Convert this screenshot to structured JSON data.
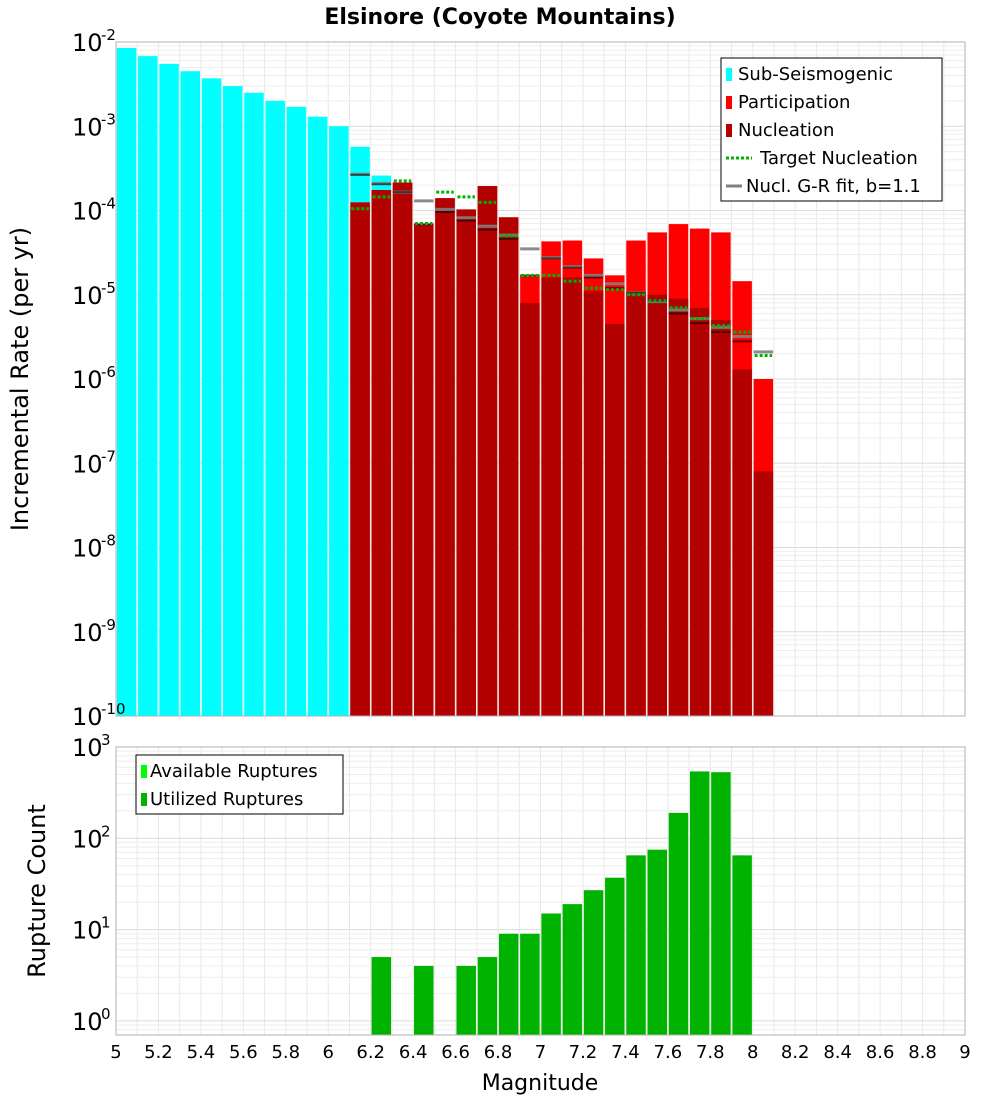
{
  "chart_data": [
    {
      "type": "bar",
      "title": "Elsinore (Coyote Mountains)",
      "xlabel": "Magnitude",
      "ylabel": "Incremental Rate (per yr)",
      "yscale": "log",
      "ylim": [
        1e-10,
        0.01
      ],
      "xlim": [
        5,
        9
      ],
      "y_ticks": [
        {
          "b": "10",
          "e": "-2"
        },
        {
          "b": "10",
          "e": "-3"
        },
        {
          "b": "10",
          "e": "-4"
        },
        {
          "b": "10",
          "e": "-5"
        },
        {
          "b": "10",
          "e": "-6"
        },
        {
          "b": "10",
          "e": "-7"
        },
        {
          "b": "10",
          "e": "-8"
        },
        {
          "b": "10",
          "e": "-9"
        },
        {
          "b": "10",
          "e": "-10"
        }
      ],
      "legend": [
        {
          "label": "Sub-Seismogenic",
          "color": "#00ffff",
          "style": "bar"
        },
        {
          "label": "Participation",
          "color": "#ff0000",
          "style": "bar"
        },
        {
          "label": "Nucleation",
          "color": "#b30000",
          "style": "bar"
        },
        {
          "label": "Target Nucleation",
          "color": "#00b300",
          "style": "dotted"
        },
        {
          "label": "Nucl. G-R fit, b=1.1",
          "color": "#808080",
          "style": "line"
        }
      ],
      "sub_seismogenic": {
        "x": [
          5.05,
          5.15,
          5.25,
          5.35,
          5.45,
          5.55,
          5.65,
          5.75,
          5.85,
          5.95,
          6.05,
          6.15,
          6.25
        ],
        "values": [
          0.0085,
          0.0068,
          0.0055,
          0.0045,
          0.0037,
          0.003,
          0.0025,
          0.002,
          0.0017,
          0.0013,
          0.001,
          0.00057,
          0.00026
        ]
      },
      "participation": {
        "x": [
          6.15,
          6.25,
          6.35,
          6.45,
          6.55,
          6.65,
          6.75,
          6.85,
          6.95,
          7.05,
          7.15,
          7.25,
          7.35,
          7.45,
          7.55,
          7.65,
          7.75,
          7.85,
          7.95,
          8.05
        ],
        "values": [
          0.000105,
          0.000175,
          0.000215,
          6.9e-05,
          0.00014,
          0.000103,
          0.000195,
          8.3e-05,
          1.7e-05,
          4.3e-05,
          4.4e-05,
          2.7e-05,
          1.7e-05,
          4.4e-05,
          5.5e-05,
          6.9e-05,
          6.1e-05,
          5.5e-05,
          1.45e-05,
          1e-06
        ]
      },
      "nucleation": {
        "x": [
          6.15,
          6.25,
          6.35,
          6.45,
          6.55,
          6.65,
          6.75,
          6.85,
          6.95,
          7.05,
          7.15,
          7.25,
          7.35,
          7.45,
          7.55,
          7.65,
          7.75,
          7.85,
          7.95,
          8.05
        ],
        "values": [
          0.000125,
          0.000175,
          0.000215,
          6.9e-05,
          0.00014,
          0.000103,
          0.000195,
          8.3e-05,
          8e-06,
          1.6e-05,
          1.6e-05,
          1.1e-05,
          4.5e-06,
          1.1e-05,
          1e-05,
          9e-06,
          7e-06,
          5e-06,
          1.3e-06,
          8e-08
        ]
      },
      "nucleation_marks": {
        "x": [
          6.15,
          6.25,
          6.35,
          6.45,
          6.55,
          6.65,
          6.75,
          6.85,
          6.95,
          7.05,
          7.15,
          7.25,
          7.35,
          7.45,
          7.55,
          7.65,
          7.75,
          7.85,
          7.95
        ],
        "values": [
          0.000265,
          0.000205,
          0.000165,
          6.9e-05,
          9.6e-05,
          7.6e-05,
          5.9e-05,
          4.6e-05,
          1.7e-05,
          2.7e-05,
          2.1e-05,
          1.6e-05,
          1.2e-05,
          1.05e-05,
          8.5e-06,
          6e-06,
          4.6e-06,
          3.6e-06,
          2.8e-06
        ]
      },
      "target_nucleation": {
        "x": [
          6.15,
          6.25,
          6.35,
          6.45,
          6.55,
          6.65,
          6.75,
          6.85,
          6.95,
          7.05,
          7.15,
          7.25,
          7.35,
          7.45,
          7.55,
          7.65,
          7.75,
          7.85,
          7.95,
          8.05
        ],
        "values": [
          0.000105,
          0.000145,
          0.000225,
          7e-05,
          0.000165,
          0.000145,
          0.000125,
          5e-05,
          1.7e-05,
          1.7e-05,
          1.45e-05,
          1.2e-05,
          1.15e-05,
          1e-05,
          8.5e-06,
          7e-06,
          5.2e-06,
          4.3e-06,
          3.6e-06,
          1.9e-06
        ]
      },
      "gr_fit": {
        "x": [
          6.15,
          6.25,
          6.35,
          6.45,
          6.55,
          6.65,
          6.75,
          6.85,
          6.95,
          7.05,
          7.15,
          7.25,
          7.35,
          7.45,
          7.55,
          7.65,
          7.75,
          7.85,
          7.95,
          8.05
        ],
        "values": [
          0.00027,
          0.00021,
          0.000165,
          0.00013,
          0.000103,
          8.2e-05,
          6.5e-05,
          5.1e-05,
          3.5e-05,
          2.75e-05,
          2.15e-05,
          1.7e-05,
          1.35e-05,
          1.05e-05,
          8.3e-06,
          6.6e-06,
          5.2e-06,
          4.1e-06,
          3.2e-06,
          2.1e-06
        ]
      }
    },
    {
      "type": "bar",
      "xlabel": "Magnitude",
      "ylabel": "Rupture Count",
      "yscale": "log",
      "ylim": [
        0.7,
        1000
      ],
      "xlim": [
        5,
        9
      ],
      "x_ticks": [
        "5",
        "5.2",
        "5.4",
        "5.6",
        "5.8",
        "6",
        "6.2",
        "6.4",
        "6.6",
        "6.8",
        "7",
        "7.2",
        "7.4",
        "7.6",
        "7.8",
        "8",
        "8.2",
        "8.4",
        "8.6",
        "8.8",
        "9"
      ],
      "y_ticks": [
        {
          "b": "10",
          "e": "3"
        },
        {
          "b": "10",
          "e": "2"
        },
        {
          "b": "10",
          "e": "1"
        },
        {
          "b": "10",
          "e": "0"
        }
      ],
      "legend": [
        {
          "label": "Available Ruptures",
          "color": "#00ff00"
        },
        {
          "label": "Utilized Ruptures",
          "color": "#00b300"
        }
      ],
      "utilized": {
        "x": [
          6.25,
          6.45,
          6.65,
          6.75,
          6.85,
          6.95,
          7.05,
          7.15,
          7.25,
          7.35,
          7.45,
          7.55,
          7.65,
          7.75,
          7.85,
          7.95
        ],
        "values": [
          5,
          4,
          4,
          5,
          9,
          9,
          15,
          19,
          27,
          37,
          65,
          75,
          190,
          540,
          530,
          65
        ]
      }
    }
  ]
}
